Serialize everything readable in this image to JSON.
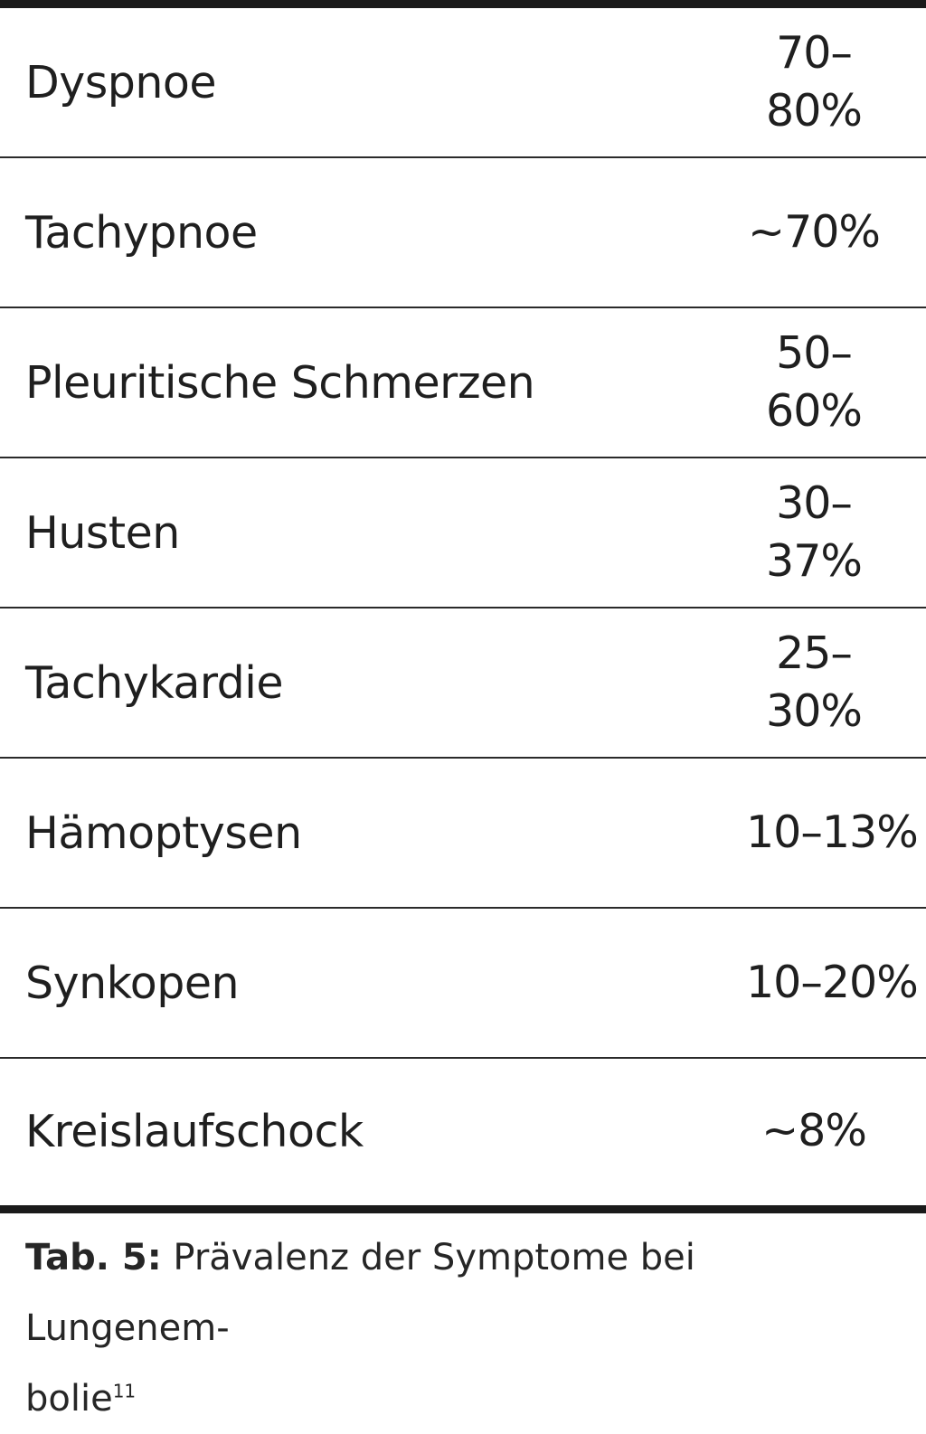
{
  "table": {
    "rows": [
      {
        "symptom": "Dyspnoe",
        "prevalence_line1": "70–",
        "prevalence_line2": "80%"
      },
      {
        "symptom": "Tachypnoe",
        "prevalence_line1": "~70%",
        "prevalence_line2": ""
      },
      {
        "symptom": "Pleuritische Schmerzen",
        "prevalence_line1": "50–",
        "prevalence_line2": "60%"
      },
      {
        "symptom": "Husten",
        "prevalence_line1": "30–",
        "prevalence_line2": "37%"
      },
      {
        "symptom": "Tachykardie",
        "prevalence_line1": "25–",
        "prevalence_line2": "30%"
      },
      {
        "symptom": "Hämoptysen",
        "prevalence_line1": "10–13%",
        "prevalence_line2": ""
      },
      {
        "symptom": "Synkopen",
        "prevalence_line1": "10–20%",
        "prevalence_line2": ""
      },
      {
        "symptom": "Kreislaufschock",
        "prevalence_line1": "~8%",
        "prevalence_line2": ""
      }
    ]
  },
  "caption": {
    "label": "Tab. 5:",
    "text_part1": " Prävalenz der Symptome bei Lungenem-",
    "text_part2": "bolie",
    "reference": "11"
  }
}
